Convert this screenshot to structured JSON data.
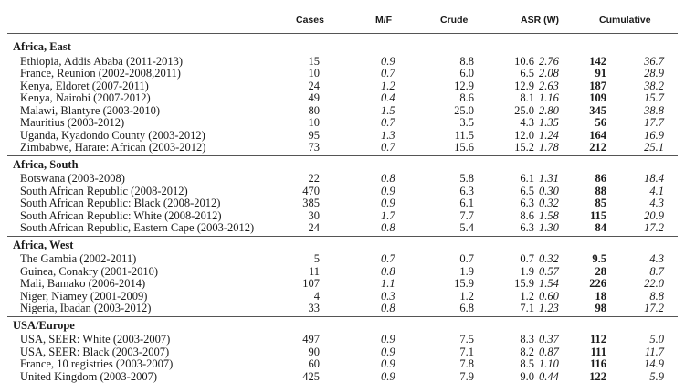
{
  "headers": {
    "cases": "Cases",
    "mf": "M/F",
    "crude": "Crude",
    "asr": "ASR (W)",
    "cumulative": "Cumulative"
  },
  "sections": [
    {
      "name": "Africa, East",
      "rows": [
        {
          "region": "Ethiopia, Addis Ababa (2011-2013)",
          "cases": "15",
          "mf": "0.9",
          "crude": "8.8",
          "asr": "10.6",
          "asr_se": "2.76",
          "cum": "142",
          "cum_se": "36.7"
        },
        {
          "region": "France, Reunion (2002-2008,2011)",
          "cases": "10",
          "mf": "0.7",
          "crude": "6.0",
          "asr": "6.5",
          "asr_se": "2.08",
          "cum": "91",
          "cum_se": "28.9"
        },
        {
          "region": "Kenya, Eldoret (2007-2011)",
          "cases": "24",
          "mf": "1.2",
          "crude": "12.9",
          "asr": "12.9",
          "asr_se": "2.63",
          "cum": "187",
          "cum_se": "38.2"
        },
        {
          "region": "Kenya, Nairobi (2007-2012)",
          "cases": "49",
          "mf": "0.4",
          "crude": "8.6",
          "asr": "8.1",
          "asr_se": "1.16",
          "cum": "109",
          "cum_se": "15.7"
        },
        {
          "region": "Malawi, Blantyre (2003-2010)",
          "cases": "80",
          "mf": "1.5",
          "crude": "25.0",
          "asr": "25.0",
          "asr_se": "2.80",
          "cum": "345",
          "cum_se": "38.8"
        },
        {
          "region": "Mauritius (2003-2012)",
          "cases": "10",
          "mf": "0.7",
          "crude": "3.5",
          "asr": "4.3",
          "asr_se": "1.35",
          "cum": "56",
          "cum_se": "17.7"
        },
        {
          "region": "Uganda, Kyadondo County (2003-2012)",
          "cases": "95",
          "mf": "1.3",
          "crude": "11.5",
          "asr": "12.0",
          "asr_se": "1.24",
          "cum": "164",
          "cum_se": "16.9"
        },
        {
          "region": "Zimbabwe, Harare: African (2003-2012)",
          "cases": "73",
          "mf": "0.7",
          "crude": "15.6",
          "asr": "15.2",
          "asr_se": "1.78",
          "cum": "212",
          "cum_se": "25.1"
        }
      ]
    },
    {
      "name": "Africa, South",
      "rows": [
        {
          "region": "Botswana (2003-2008)",
          "cases": "22",
          "mf": "0.8",
          "crude": "5.8",
          "asr": "6.1",
          "asr_se": "1.31",
          "cum": "86",
          "cum_se": "18.4"
        },
        {
          "region": "South African Republic (2008-2012)",
          "cases": "470",
          "mf": "0.9",
          "crude": "6.3",
          "asr": "6.5",
          "asr_se": "0.30",
          "cum": "88",
          "cum_se": "4.1"
        },
        {
          "region": "South African Republic: Black (2008-2012)",
          "cases": "385",
          "mf": "0.9",
          "crude": "6.1",
          "asr": "6.3",
          "asr_se": "0.32",
          "cum": "85",
          "cum_se": "4.3"
        },
        {
          "region": "South African Republic: White (2008-2012)",
          "cases": "30",
          "mf": "1.7",
          "crude": "7.7",
          "asr": "8.6",
          "asr_se": "1.58",
          "cum": "115",
          "cum_se": "20.9"
        },
        {
          "region": "South African Republic, Eastern Cape (2003-2012)",
          "cases": "24",
          "mf": "0.8",
          "crude": "5.4",
          "asr": "6.3",
          "asr_se": "1.30",
          "cum": "84",
          "cum_se": "17.2"
        }
      ]
    },
    {
      "name": "Africa, West",
      "rows": [
        {
          "region": "The Gambia (2002-2011)",
          "cases": "5",
          "mf": "0.7",
          "crude": "0.7",
          "asr": "0.7",
          "asr_se": "0.32",
          "cum": "9.5",
          "cum_se": "4.3"
        },
        {
          "region": "Guinea, Conakry (2001-2010)",
          "cases": "11",
          "mf": "0.8",
          "crude": "1.9",
          "asr": "1.9",
          "asr_se": "0.57",
          "cum": "28",
          "cum_se": "8.7"
        },
        {
          "region": "Mali, Bamako (2006-2014)",
          "cases": "107",
          "mf": "1.1",
          "crude": "15.9",
          "asr": "15.9",
          "asr_se": "1.54",
          "cum": "226",
          "cum_se": "22.0"
        },
        {
          "region": "Niger, Niamey (2001-2009)",
          "cases": "4",
          "mf": "0.3",
          "crude": "1.2",
          "asr": "1.2",
          "asr_se": "0.60",
          "cum": "18",
          "cum_se": "8.8"
        },
        {
          "region": "Nigeria, Ibadan (2003-2012)",
          "cases": "33",
          "mf": "0.8",
          "crude": "6.8",
          "asr": "7.1",
          "asr_se": "1.23",
          "cum": "98",
          "cum_se": "17.2"
        }
      ]
    },
    {
      "name": "USA/Europe",
      "rows": [
        {
          "region": "USA, SEER: White (2003-2007)",
          "cases": "497",
          "mf": "0.9",
          "crude": "7.5",
          "asr": "8.3",
          "asr_se": "0.37",
          "cum": "112",
          "cum_se": "5.0"
        },
        {
          "region": "USA, SEER: Black (2003-2007)",
          "cases": "90",
          "mf": "0.9",
          "crude": "7.1",
          "asr": "8.2",
          "asr_se": "0.87",
          "cum": "111",
          "cum_se": "11.7"
        },
        {
          "region": "France, 10 registries (2003-2007)",
          "cases": "60",
          "mf": "0.9",
          "crude": "7.8",
          "asr": "8.5",
          "asr_se": "1.10",
          "cum": "116",
          "cum_se": "14.9"
        },
        {
          "region": "United Kingdom (2003-2007)",
          "cases": "425",
          "mf": "0.9",
          "crude": "7.9",
          "asr": "9.0",
          "asr_se": "0.44",
          "cum": "122",
          "cum_se": "5.9"
        }
      ]
    }
  ]
}
